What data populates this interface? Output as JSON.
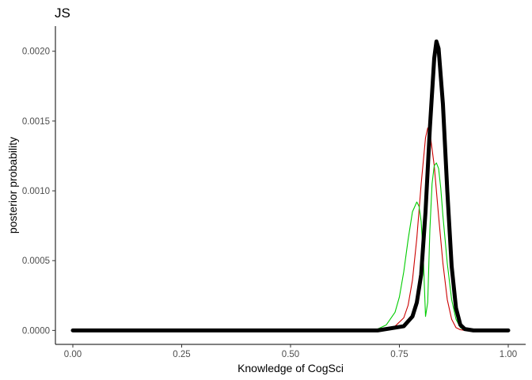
{
  "chart_data": {
    "type": "line",
    "title": "JS",
    "xlabel": "Knowledge of CogSci",
    "ylabel": "posterior probability",
    "xlim": [
      -0.04,
      1.04
    ],
    "ylim": [
      -0.0001,
      0.00218
    ],
    "x_ticks": [
      0.0,
      0.25,
      0.5,
      0.75,
      1.0
    ],
    "x_tick_labels": [
      "0.00",
      "0.25",
      "0.50",
      "0.75",
      "1.00"
    ],
    "y_ticks": [
      0.0,
      0.0005,
      0.001,
      0.0015,
      0.002
    ],
    "y_tick_labels": [
      "0.0000",
      "0.0005",
      "0.0010",
      "0.0015",
      "0.0020"
    ],
    "grid": false,
    "legend": "none",
    "series": [
      {
        "color": "#cc0000",
        "line_width": "thin",
        "x": [
          0.0,
          0.6,
          0.68,
          0.72,
          0.74,
          0.76,
          0.77,
          0.78,
          0.79,
          0.8,
          0.81,
          0.815,
          0.82,
          0.83,
          0.84,
          0.85,
          0.86,
          0.87,
          0.88,
          0.89,
          0.9,
          0.92,
          1.0
        ],
        "y": [
          0.0,
          0.0,
          0.0,
          1e-05,
          3e-05,
          9e-05,
          0.00018,
          0.00036,
          0.00066,
          0.00105,
          0.00138,
          0.00145,
          0.00142,
          0.00118,
          0.00082,
          0.00048,
          0.00022,
          8e-05,
          2e-05,
          5e-06,
          0.0,
          0.0,
          0.0
        ]
      },
      {
        "color": "#00cc00",
        "line_width": "thin",
        "x": [
          0.0,
          0.6,
          0.68,
          0.7,
          0.72,
          0.74,
          0.75,
          0.76,
          0.77,
          0.78,
          0.79,
          0.795,
          0.8,
          0.805,
          0.81,
          0.815,
          0.82,
          0.825,
          0.83,
          0.835,
          0.84,
          0.845,
          0.85,
          0.86,
          0.87,
          0.88,
          0.89,
          0.9,
          1.0
        ],
        "y": [
          0.0,
          0.0,
          0.0,
          1e-05,
          4e-05,
          0.00013,
          0.00024,
          0.00042,
          0.00065,
          0.00085,
          0.00092,
          0.00089,
          0.00078,
          0.00052,
          0.0001,
          0.0002,
          0.00072,
          0.00105,
          0.00118,
          0.0012,
          0.00116,
          0.00102,
          0.00082,
          0.00048,
          0.00022,
          8e-05,
          2e-05,
          0.0,
          0.0
        ]
      },
      {
        "color": "#000000",
        "line_width": "thick",
        "x": [
          0.0,
          0.7,
          0.76,
          0.78,
          0.79,
          0.8,
          0.81,
          0.82,
          0.83,
          0.835,
          0.84,
          0.85,
          0.86,
          0.87,
          0.88,
          0.89,
          0.9,
          0.92,
          1.0
        ],
        "y": [
          0.0,
          0.0,
          3e-05,
          0.0001,
          0.0002,
          0.0004,
          0.00085,
          0.00145,
          0.00195,
          0.00207,
          0.00202,
          0.00162,
          0.001,
          0.00046,
          0.00016,
          4e-05,
          1e-05,
          0.0,
          0.0
        ]
      }
    ]
  }
}
